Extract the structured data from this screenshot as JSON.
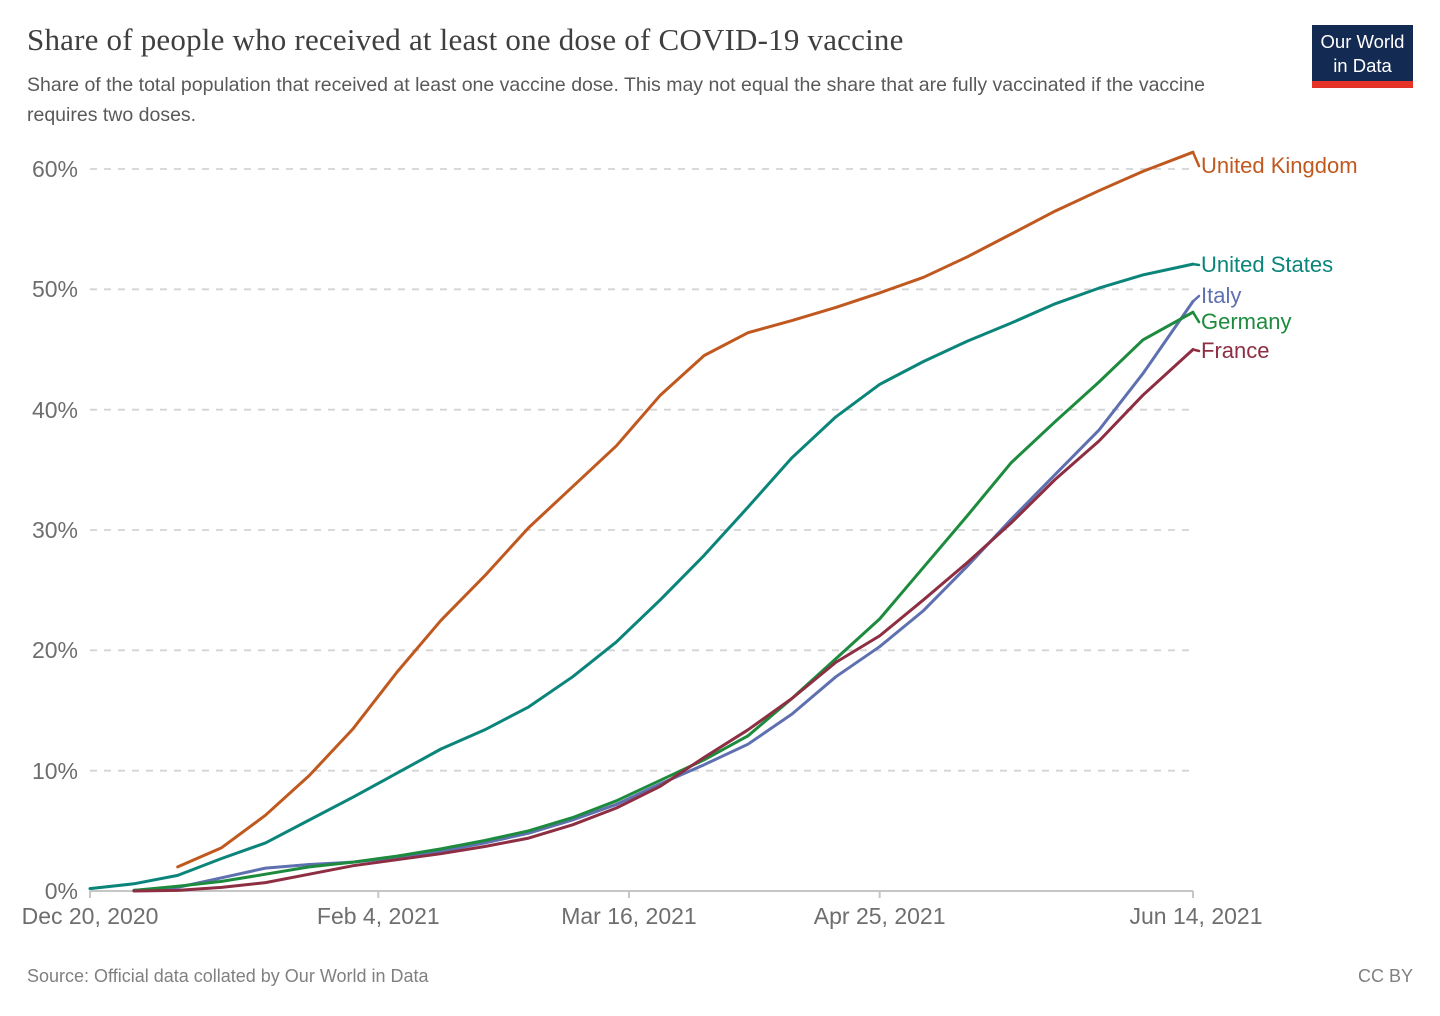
{
  "header": {
    "title": "Share of people who received at least one dose of COVID-19 vaccine",
    "subtitle": "Share of the total population that received at least one vaccine dose. This may not equal the share that are fully vaccinated if the vaccine requires two doses.",
    "logo": {
      "line1": "Our World",
      "line2": "in Data"
    }
  },
  "footer": {
    "source": "Source: Official data collated by Our World in Data",
    "license": "CC BY"
  },
  "colors": {
    "background": "#ffffff",
    "grid": "#d4d4d4",
    "axis": "#c6c6c6",
    "tick_text": "#6e6e6e",
    "title_text": "#3f3f3f",
    "subtitle_text": "#595959",
    "footer_text": "#808080",
    "logo_bg": "#132a52",
    "logo_stripe": "#e6332a"
  },
  "chart_data": {
    "type": "line",
    "title": "Share of people who received at least one dose of COVID-19 vaccine",
    "xlabel": "",
    "ylabel": "",
    "grid": true,
    "legend_position": "right",
    "ylim": [
      0,
      62
    ],
    "y_ticks": [
      "0%",
      "10%",
      "20%",
      "30%",
      "40%",
      "50%",
      "60%"
    ],
    "y_tick_values": [
      0,
      10,
      20,
      30,
      40,
      50,
      60
    ],
    "x_axis_ticks": [
      "Dec 20, 2020",
      "Feb 4, 2021",
      "Mar 16, 2021",
      "Apr 25, 2021",
      "Jun 14, 2021"
    ],
    "x_tick_days": [
      0,
      46,
      86,
      126,
      176
    ],
    "x_dates": [
      "Dec 20, 2020",
      "Dec 27, 2020",
      "Jan 3, 2021",
      "Jan 10, 2021",
      "Jan 17, 2021",
      "Jan 24, 2021",
      "Jan 31, 2021",
      "Feb 7, 2021",
      "Feb 14, 2021",
      "Feb 21, 2021",
      "Feb 28, 2021",
      "Mar 7, 2021",
      "Mar 14, 2021",
      "Mar 21, 2021",
      "Mar 28, 2021",
      "Apr 4, 2021",
      "Apr 11, 2021",
      "Apr 18, 2021",
      "Apr 25, 2021",
      "May 2, 2021",
      "May 9, 2021",
      "May 16, 2021",
      "May 23, 2021",
      "May 30, 2021",
      "Jun 6, 2021",
      "Jun 14, 2021"
    ],
    "x_days": [
      0,
      7,
      14,
      21,
      28,
      35,
      42,
      49,
      56,
      63,
      70,
      77,
      84,
      91,
      98,
      105,
      112,
      119,
      126,
      133,
      140,
      147,
      154,
      161,
      168,
      176
    ],
    "unit": "%",
    "series": [
      {
        "name": "United Kingdom",
        "color": "#c0591f",
        "values": [
          null,
          null,
          2.0,
          3.6,
          6.3,
          9.6,
          13.5,
          18.2,
          22.5,
          26.2,
          30.2,
          33.6,
          37.0,
          41.2,
          44.5,
          46.4,
          47.4,
          48.5,
          49.7,
          51.0,
          52.7,
          54.6,
          56.5,
          58.2,
          59.8,
          61.4
        ]
      },
      {
        "name": "United States",
        "color": "#0b857a",
        "values": [
          0.2,
          0.6,
          1.3,
          2.7,
          4.0,
          5.9,
          7.8,
          9.8,
          11.8,
          13.4,
          15.3,
          17.8,
          20.7,
          24.2,
          27.9,
          31.9,
          36.0,
          39.4,
          42.1,
          44.0,
          45.7,
          47.2,
          48.8,
          50.1,
          51.2,
          52.1
        ]
      },
      {
        "name": "Italy",
        "color": "#5f70b0",
        "values": [
          null,
          0.05,
          0.3,
          1.1,
          1.9,
          2.2,
          2.4,
          2.8,
          3.3,
          4.0,
          4.8,
          5.9,
          7.2,
          8.9,
          10.5,
          12.2,
          14.7,
          17.8,
          20.3,
          23.3,
          27.0,
          30.9,
          34.6,
          38.3,
          43.0,
          49.0
        ]
      },
      {
        "name": "Germany",
        "color": "#1d8b3d",
        "values": [
          null,
          0.05,
          0.4,
          0.8,
          1.4,
          2.0,
          2.4,
          2.9,
          3.5,
          4.2,
          5.0,
          6.1,
          7.5,
          9.2,
          10.9,
          12.9,
          16.0,
          19.3,
          22.6,
          26.9,
          31.2,
          35.6,
          39.0,
          42.3,
          45.8,
          48.1
        ]
      },
      {
        "name": "France",
        "color": "#8d2e43",
        "values": [
          null,
          0.0,
          0.05,
          0.3,
          0.7,
          1.4,
          2.1,
          2.6,
          3.1,
          3.7,
          4.4,
          5.5,
          6.9,
          8.7,
          11.1,
          13.4,
          16.0,
          19.0,
          21.2,
          24.2,
          27.3,
          30.6,
          34.2,
          37.4,
          41.2,
          45.0
        ]
      }
    ]
  }
}
